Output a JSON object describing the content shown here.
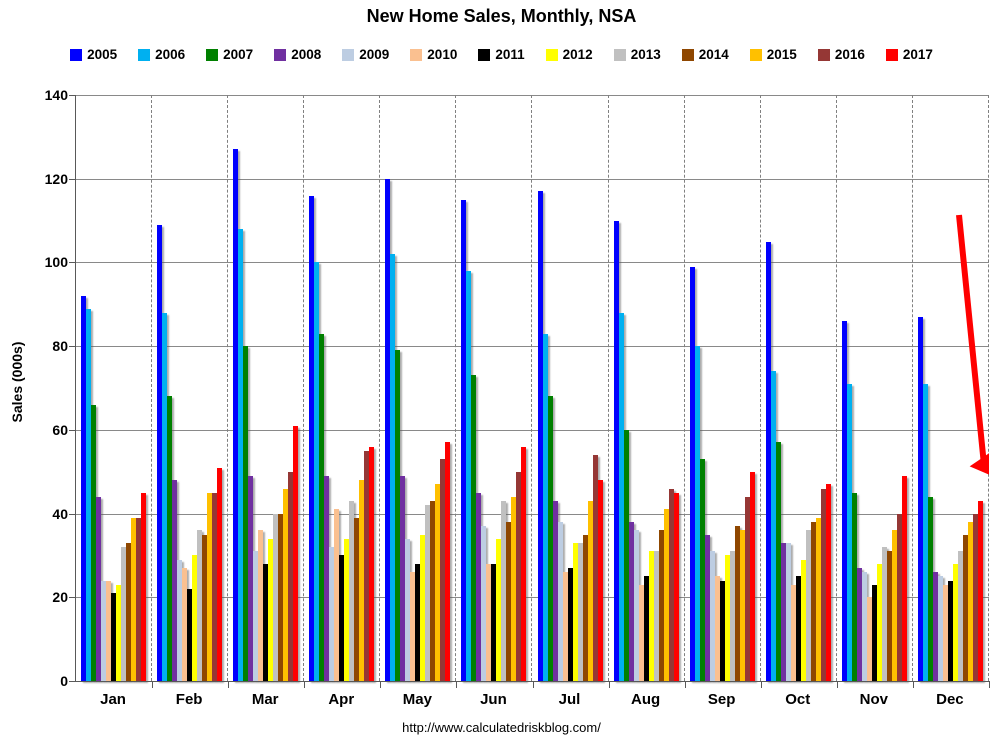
{
  "chart_data": {
    "type": "bar",
    "title": "New Home Sales, Monthly, NSA",
    "ylabel": "Sales (000s)",
    "footer": "http://www.calculatedriskblog.com/",
    "categories": [
      "Jan",
      "Feb",
      "Mar",
      "Apr",
      "May",
      "Jun",
      "Jul",
      "Aug",
      "Sep",
      "Oct",
      "Nov",
      "Dec"
    ],
    "ylim": [
      0,
      140
    ],
    "ytick_step": 20,
    "grid": {
      "horizontal": "solid gray every 20",
      "vertical": "dashed gray between month groups"
    },
    "legend_position": "top",
    "series": [
      {
        "name": "2005",
        "color": "#0000FE",
        "values": [
          92,
          109,
          127,
          116,
          120,
          115,
          117,
          110,
          99,
          105,
          86,
          87
        ]
      },
      {
        "name": "2006",
        "color": "#00B0F0",
        "values": [
          89,
          88,
          108,
          100,
          102,
          98,
          83,
          88,
          80,
          74,
          71,
          71
        ]
      },
      {
        "name": "2007",
        "color": "#008000",
        "values": [
          66,
          68,
          80,
          83,
          79,
          73,
          68,
          60,
          53,
          57,
          45,
          44
        ]
      },
      {
        "name": "2008",
        "color": "#7030A0",
        "values": [
          44,
          48,
          49,
          49,
          49,
          45,
          43,
          38,
          35,
          33,
          27,
          26
        ]
      },
      {
        "name": "2009",
        "color": "#BDCDE2",
        "values": [
          24,
          29,
          31,
          32,
          34,
          37,
          38,
          36,
          31,
          33,
          26,
          25
        ]
      },
      {
        "name": "2010",
        "color": "#FAC090",
        "values": [
          24,
          27,
          36,
          41,
          26,
          28,
          26,
          23,
          25,
          23,
          20,
          23
        ]
      },
      {
        "name": "2011",
        "color": "#000000",
        "values": [
          21,
          22,
          28,
          30,
          28,
          28,
          27,
          25,
          24,
          25,
          23,
          24
        ]
      },
      {
        "name": "2012",
        "color": "#FFFF00",
        "values": [
          23,
          30,
          34,
          34,
          35,
          34,
          33,
          31,
          30,
          29,
          28,
          28
        ]
      },
      {
        "name": "2013",
        "color": "#C0C0C0",
        "values": [
          32,
          36,
          40,
          43,
          42,
          43,
          33,
          31,
          31,
          36,
          32,
          31
        ]
      },
      {
        "name": "2014",
        "color": "#8F4700",
        "values": [
          33,
          35,
          40,
          39,
          43,
          38,
          35,
          36,
          37,
          38,
          31,
          35
        ]
      },
      {
        "name": "2015",
        "color": "#FFC000",
        "values": [
          39,
          45,
          46,
          48,
          47,
          44,
          43,
          41,
          36,
          39,
          36,
          38
        ]
      },
      {
        "name": "2016",
        "color": "#953735",
        "values": [
          39,
          45,
          50,
          55,
          53,
          50,
          54,
          46,
          44,
          46,
          40,
          40
        ]
      },
      {
        "name": "2017",
        "color": "#FF0000",
        "values": [
          45,
          51,
          61,
          56,
          57,
          56,
          48,
          45,
          50,
          47,
          49,
          43
        ]
      }
    ],
    "annotation": {
      "type": "arrow",
      "color": "#FF0000",
      "target": "Dec 2017 bar",
      "from_value_approx": 111,
      "to_value_approx": 49
    }
  }
}
